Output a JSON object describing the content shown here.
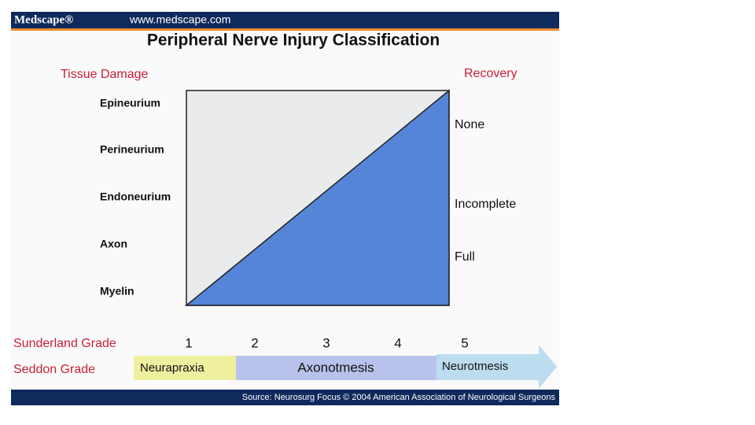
{
  "header": {
    "logo": "Medscape®",
    "url": "www.medscape.com"
  },
  "title": "Peripheral Nerve Injury Classification",
  "left_heading": "Tissue Damage",
  "right_heading": "Recovery",
  "tissue_layers": [
    "Epineurium",
    "Perineurium",
    "Endoneurium",
    "Axon",
    "Myelin"
  ],
  "recovery": [
    "None",
    "Incomplete",
    "Full"
  ],
  "sunderland": {
    "label": "Sunderland Grade",
    "grades": [
      1,
      2,
      3,
      4,
      5
    ]
  },
  "seddon": {
    "label": "Seddon Grade",
    "grades": [
      "Neurapraxia",
      "Axonotmesis",
      "Neurotmesis"
    ]
  },
  "source": "Source: Neurosurg Focus © 2004 American Association of Neurological Surgeons"
}
